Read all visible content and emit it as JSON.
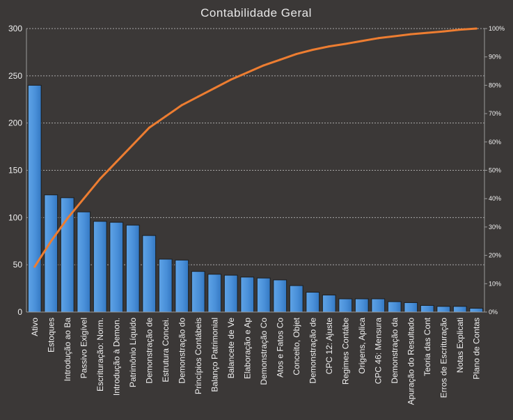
{
  "chart_data": {
    "type": "bar",
    "title": "Contabilidade  Geral",
    "categories": [
      "Ativo",
      "Estoques",
      "Introdução ao Ba",
      "Passivo Exigível",
      "Escrituração: Norm.",
      "Introdução à Demon.",
      "Patrimônio Líquido",
      "Demonstração de",
      "Estrutura Concei.",
      "Demonstração do",
      "Princípios Contábeis",
      "Balanço Patrimonial",
      "Balancete de Ve",
      "Elaboração e Ap",
      "Demonstração Co",
      "Atos e Fatos Co",
      "Conceito, Objet",
      "Demonstração de",
      "CPC 12: Ajuste",
      "Regimes Contábe",
      "Origens, Aplica",
      "CPC 46: Mensura",
      "Demonstração da",
      "Apuração do Resultado",
      "Teoria das Cont",
      "Erros de Escrituração",
      "Notas Explicati",
      "Plano de Contas"
    ],
    "series": [
      {
        "type": "bar",
        "axis": "left",
        "color": "#4a90d9",
        "values": [
          240,
          124,
          121,
          106,
          96,
          95,
          92,
          81,
          56,
          55,
          43,
          40,
          39,
          37,
          36,
          34,
          28,
          21,
          18,
          14,
          14,
          14,
          11,
          10,
          7,
          6,
          6,
          4
        ]
      },
      {
        "type": "line",
        "axis": "right",
        "color": "#ed7d31",
        "values": [
          16,
          25,
          33,
          40,
          47,
          53,
          59,
          65,
          69,
          73,
          76,
          79,
          82,
          84.5,
          87,
          89,
          91,
          92.5,
          93.7,
          94.6,
          95.6,
          96.6,
          97.3,
          98,
          98.5,
          99,
          99.6,
          100
        ]
      }
    ],
    "y_left": {
      "min": 0,
      "max": 300,
      "ticks": [
        0,
        50,
        100,
        150,
        200,
        250,
        300
      ]
    },
    "y_right": {
      "min": 0,
      "max": 100,
      "ticks": [
        "0%",
        "10%",
        "20%",
        "30%",
        "40%",
        "50%",
        "60%",
        "70%",
        "80%",
        "90%",
        "100%"
      ]
    },
    "grid": true,
    "legend": "none"
  }
}
